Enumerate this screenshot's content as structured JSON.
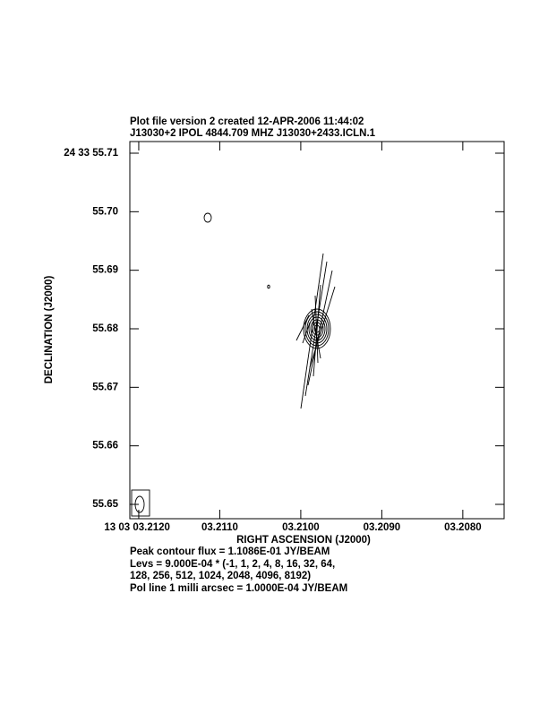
{
  "chart_data": {
    "type": "contour",
    "title": "Plot file version 2  created 12-APR-2006 11:44:02",
    "subtitle": "J13030+2  IPOL  4844.709 MHZ  J13030+2433.ICLN.1",
    "x_label": "RIGHT ASCENSION (J2000)",
    "y_label": "DECLINATION (J2000)",
    "xlim": [
      3.21211,
      3.20749
    ],
    "ylim": [
      55.64755,
      55.71199
    ],
    "xticks": [
      {
        "value": 3.212,
        "label": "13 03 03.2120"
      },
      {
        "value": 3.211,
        "label": "03.2110"
      },
      {
        "value": 3.21,
        "label": "03.2100"
      },
      {
        "value": 3.209,
        "label": "03.2090"
      },
      {
        "value": 3.208,
        "label": "03.2080"
      }
    ],
    "yticks": [
      {
        "value": 55.71,
        "label": "24 33 55.71"
      },
      {
        "value": 55.7,
        "label": "55.70"
      },
      55.69,
      55.68,
      55.67,
      55.66,
      55.65
    ],
    "notes": [
      "Peak contour flux =  1.1086E-01 JY/BEAM",
      "Levs = 9.000E-04 * (-1, 1, 2, 4, 8, 16, 32, 64,",
      "128, 256, 512, 1024, 2048, 4096, 8192)",
      "Pol line 1 milli arcsec =  1.0000E-04 JY/BEAM"
    ]
  }
}
